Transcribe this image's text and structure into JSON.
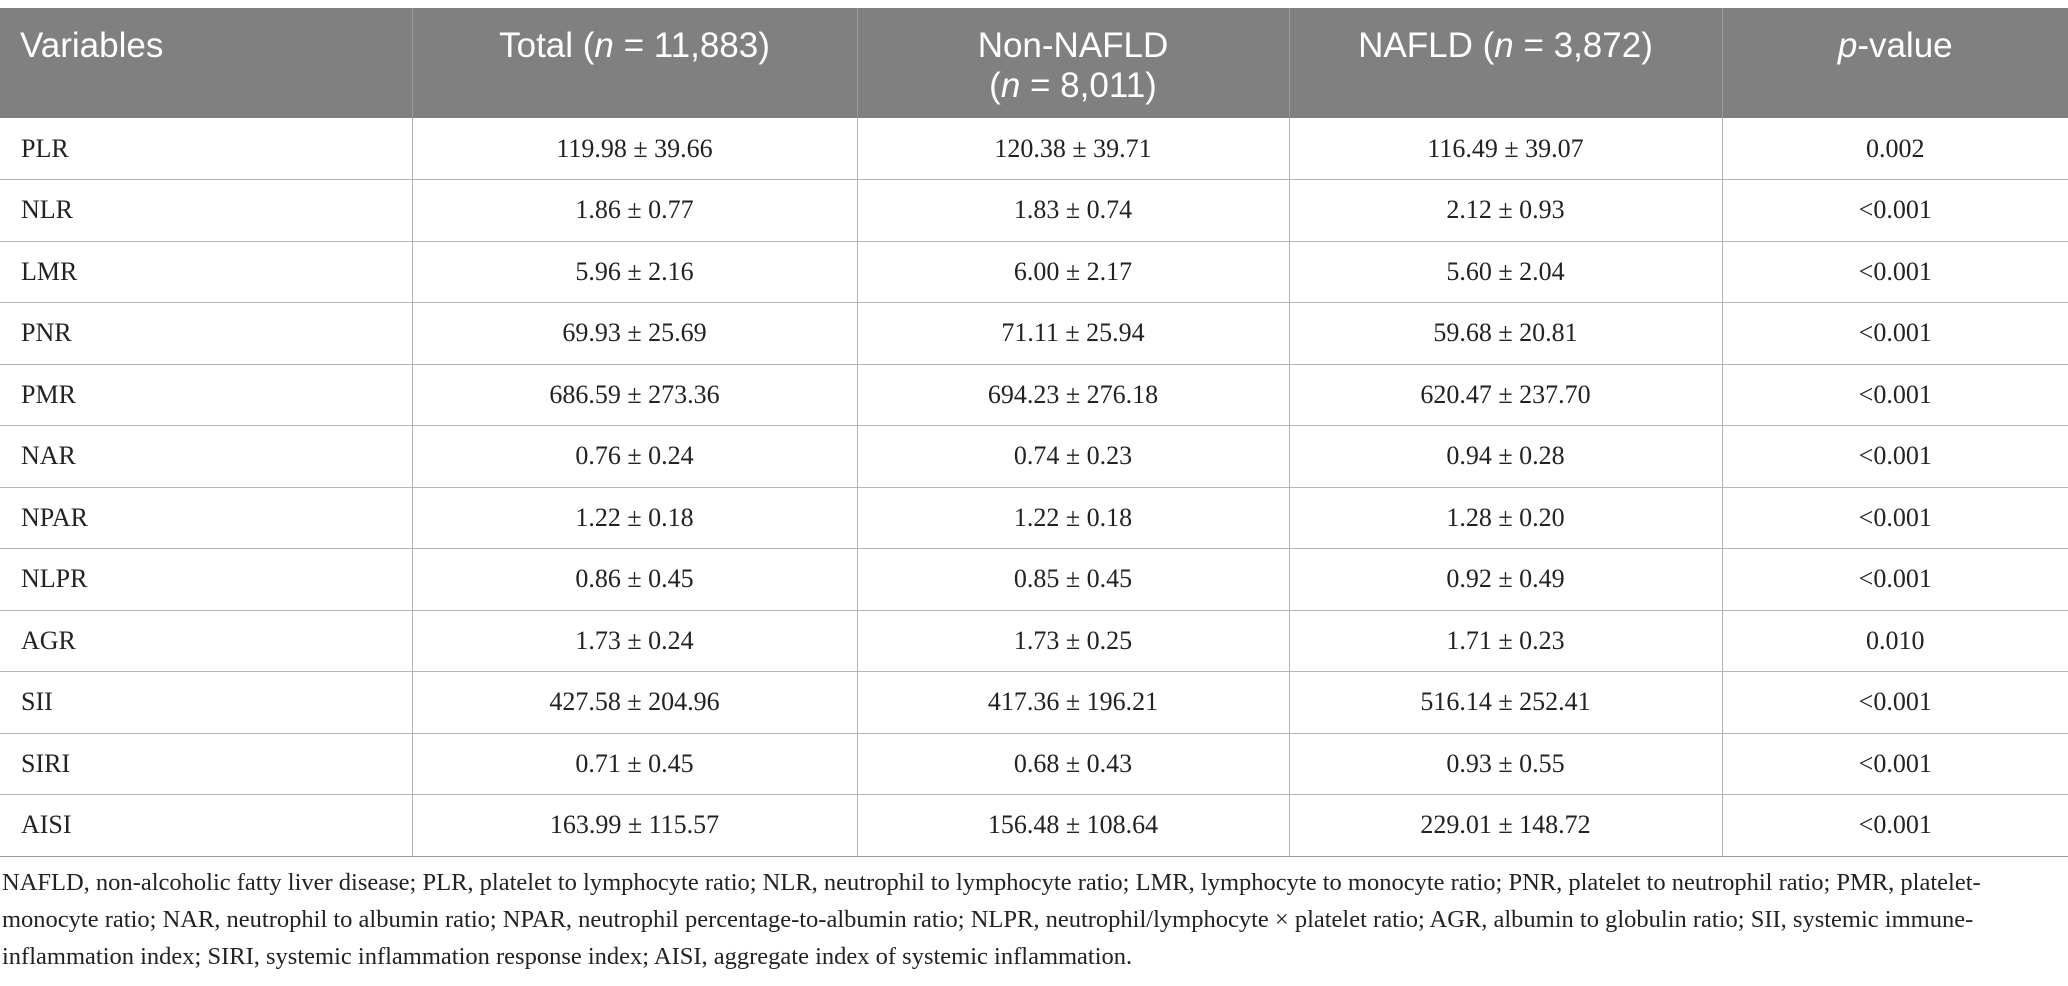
{
  "table": {
    "headers": {
      "variables": "Variables",
      "total_prefix": "Total (",
      "total_n": "n",
      "total_suffix": " = 11,883)",
      "non_nafld_line1": "Non-NAFLD",
      "non_nafld_open": "(",
      "non_nafld_n": "n",
      "non_nafld_suffix": " = 8,011)",
      "nafld_prefix": "NAFLD (",
      "nafld_n": "n",
      "nafld_suffix": " = 3,872)",
      "p_italic": "p",
      "p_suffix": "-value"
    },
    "rows": [
      {
        "variable": "PLR",
        "total": "119.98 ± 39.66",
        "non_nafld": "120.38 ± 39.71",
        "nafld": "116.49 ± 39.07",
        "p": "0.002"
      },
      {
        "variable": "NLR",
        "total": "1.86 ± 0.77",
        "non_nafld": "1.83 ± 0.74",
        "nafld": "2.12 ± 0.93",
        "p": "<0.001"
      },
      {
        "variable": "LMR",
        "total": "5.96 ± 2.16",
        "non_nafld": "6.00 ± 2.17",
        "nafld": "5.60 ± 2.04",
        "p": "<0.001"
      },
      {
        "variable": "PNR",
        "total": "69.93 ± 25.69",
        "non_nafld": "71.11 ± 25.94",
        "nafld": "59.68 ± 20.81",
        "p": "<0.001"
      },
      {
        "variable": "PMR",
        "total": "686.59 ± 273.36",
        "non_nafld": "694.23 ± 276.18",
        "nafld": "620.47 ± 237.70",
        "p": "<0.001"
      },
      {
        "variable": "NAR",
        "total": "0.76 ± 0.24",
        "non_nafld": "0.74 ± 0.23",
        "nafld": "0.94 ± 0.28",
        "p": "<0.001"
      },
      {
        "variable": "NPAR",
        "total": "1.22 ± 0.18",
        "non_nafld": "1.22 ± 0.18",
        "nafld": "1.28 ± 0.20",
        "p": "<0.001"
      },
      {
        "variable": "NLPR",
        "total": "0.86 ± 0.45",
        "non_nafld": "0.85 ± 0.45",
        "nafld": "0.92 ± 0.49",
        "p": "<0.001"
      },
      {
        "variable": "AGR",
        "total": "1.73 ± 0.24",
        "non_nafld": "1.73 ± 0.25",
        "nafld": "1.71 ± 0.23",
        "p": "0.010"
      },
      {
        "variable": "SII",
        "total": "427.58 ± 204.96",
        "non_nafld": "417.36 ± 196.21",
        "nafld": "516.14 ± 252.41",
        "p": "<0.001"
      },
      {
        "variable": "SIRI",
        "total": "0.71 ± 0.45",
        "non_nafld": "0.68 ± 0.43",
        "nafld": "0.93 ± 0.55",
        "p": "<0.001"
      },
      {
        "variable": "AISI",
        "total": "163.99 ± 115.57",
        "non_nafld": "156.48 ± 108.64",
        "nafld": "229.01 ± 148.72",
        "p": "<0.001"
      }
    ]
  },
  "footnote": "NAFLD, non-alcoholic fatty liver disease; PLR, platelet to lymphocyte ratio; NLR, neutrophil to lymphocyte ratio; LMR, lymphocyte to monocyte ratio; PNR, platelet to neutrophil ratio; PMR, platelet-monocyte ratio; NAR, neutrophil to albumin ratio; NPAR, neutrophil percentage-to-albumin ratio; NLPR, neutrophil/lymphocyte × platelet ratio; AGR, albumin to globulin ratio; SII, systemic immune-inflammation index; SIRI, systemic inflammation response index; AISI, aggregate index of systemic inflammation."
}
